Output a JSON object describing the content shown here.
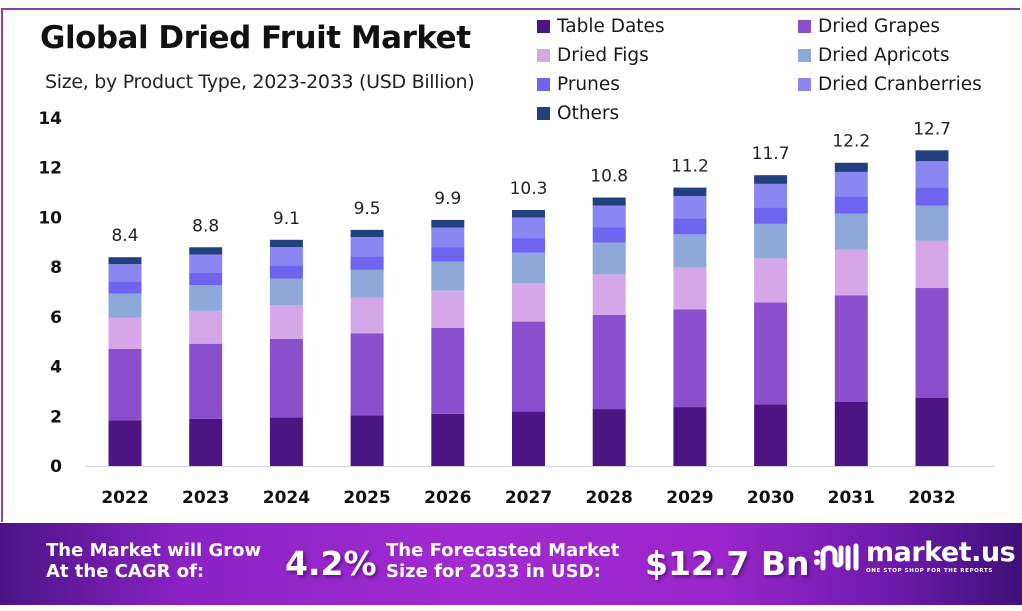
{
  "header": {
    "title": "Global Dried Fruit Market",
    "subtitle": "Size, by Product Type, 2023-2033 (USD Billion)"
  },
  "legend": [
    {
      "name": "Table Dates",
      "color": "#4b1683"
    },
    {
      "name": "Dried Grapes",
      "color": "#8a4fcc"
    },
    {
      "name": "Dried Figs",
      "color": "#d5a7e8"
    },
    {
      "name": "Dried Apricots",
      "color": "#8ea8da"
    },
    {
      "name": "Prunes",
      "color": "#6e64f0"
    },
    {
      "name": "Dried Cranberries",
      "color": "#8c86f2"
    },
    {
      "name": "Others",
      "color": "#22407e"
    }
  ],
  "chart_data": {
    "type": "bar",
    "stacked": true,
    "title": "Global Dried Fruit Market",
    "subtitle": "Size, by Product Type, 2023-2033 (USD Billion)",
    "xlabel": "",
    "ylabel": "",
    "ylim": [
      0,
      14
    ],
    "yticks": [
      0,
      2,
      4,
      6,
      8,
      10,
      12,
      14
    ],
    "grid": false,
    "legend_position": "top-right",
    "categories": [
      "2022",
      "2023",
      "2024",
      "2025",
      "2026",
      "2027",
      "2028",
      "2029",
      "2030",
      "2031",
      "2032"
    ],
    "totals": [
      8.4,
      8.8,
      9.1,
      9.5,
      9.9,
      10.3,
      10.8,
      11.2,
      11.7,
      12.2,
      12.7
    ],
    "series": [
      {
        "name": "Table Dates",
        "values": [
          1.83,
          1.9,
          1.96,
          2.03,
          2.1,
          2.19,
          2.29,
          2.37,
          2.48,
          2.59,
          2.75
        ]
      },
      {
        "name": "Dried Grapes",
        "values": [
          2.88,
          3.02,
          3.15,
          3.31,
          3.46,
          3.62,
          3.79,
          3.93,
          4.1,
          4.27,
          4.41
        ]
      },
      {
        "name": "Dried Figs",
        "values": [
          1.25,
          1.32,
          1.36,
          1.43,
          1.49,
          1.55,
          1.63,
          1.69,
          1.77,
          1.84,
          1.9
        ]
      },
      {
        "name": "Dried Apricots",
        "values": [
          0.98,
          1.03,
          1.07,
          1.12,
          1.17,
          1.22,
          1.28,
          1.33,
          1.39,
          1.45,
          1.42
        ]
      },
      {
        "name": "Prunes",
        "values": [
          0.49,
          0.51,
          0.53,
          0.55,
          0.57,
          0.59,
          0.62,
          0.64,
          0.67,
          0.7,
          0.73
        ]
      },
      {
        "name": "Dried Cranberries",
        "values": [
          0.69,
          0.73,
          0.74,
          0.77,
          0.8,
          0.83,
          0.87,
          0.9,
          0.94,
          0.98,
          1.05
        ]
      },
      {
        "name": "Others",
        "values": [
          0.28,
          0.29,
          0.29,
          0.29,
          0.31,
          0.3,
          0.32,
          0.34,
          0.35,
          0.37,
          0.44
        ]
      }
    ],
    "data_labels": [
      "8.4",
      "8.8",
      "9.1",
      "9.5",
      "9.9",
      "10.3",
      "10.8",
      "11.2",
      "11.7",
      "12.2",
      "12.7"
    ]
  },
  "banner": {
    "cagr_label_line1": "The Market will Grow",
    "cagr_label_line2": "At the CAGR of:",
    "cagr_value": "4.2%",
    "forecast_label_line1": "The Forecasted Market",
    "forecast_label_line2": "Size for 2033 in USD:",
    "forecast_value": "$12.7 Bn",
    "logo_text": "market.us",
    "logo_tagline": "ONE STOP SHOP FOR THE REPORTS",
    "logo_icon": "market-us-logo-icon"
  }
}
